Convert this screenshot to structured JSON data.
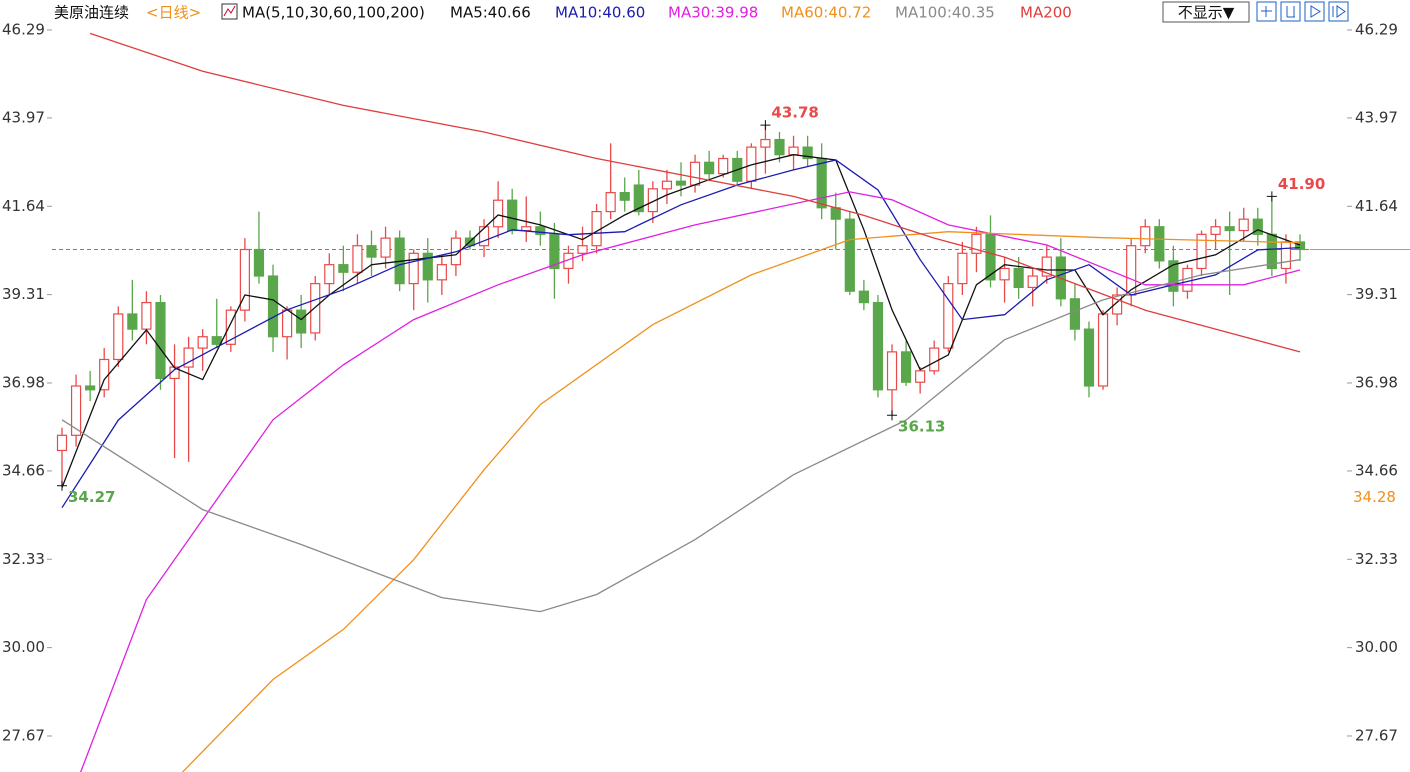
{
  "chart_data": {
    "type": "candlestick",
    "title": "美原油连续",
    "period": "<日线>",
    "indicator": "MA(5,10,30,60,100,200)",
    "display_button": "不显示▼",
    "up_color": "#e84a4a",
    "down_color": "#5aa64a",
    "ylim": [
      26.72,
      46.5
    ],
    "yticks": [
      46.29,
      43.97,
      41.64,
      39.31,
      36.98,
      34.66,
      32.33,
      {
        "value": 30,
        "label": "30.00"
      },
      27.67
    ],
    "last_price_line": {
      "value": 40.5,
      "color": "#3a8fd8"
    },
    "right_marker": {
      "value": 34.28,
      "color": "#f0901c"
    },
    "candles": [
      [
        35.2,
        35.8,
        34.27,
        35.6
      ],
      [
        35.6,
        37.2,
        35.3,
        36.9
      ],
      [
        36.9,
        37.3,
        36.5,
        36.8
      ],
      [
        36.8,
        37.9,
        36.6,
        37.6
      ],
      [
        37.6,
        39.0,
        37.4,
        38.8
      ],
      [
        38.8,
        39.7,
        38.1,
        38.4
      ],
      [
        38.4,
        39.4,
        38.0,
        39.1
      ],
      [
        39.1,
        39.3,
        36.8,
        37.1
      ],
      [
        37.1,
        38.0,
        35.0,
        37.4
      ],
      [
        37.4,
        38.2,
        34.9,
        37.9
      ],
      [
        37.9,
        38.4,
        37.3,
        38.2
      ],
      [
        38.2,
        39.2,
        37.9,
        38.0
      ],
      [
        38.0,
        39.0,
        37.8,
        38.9
      ],
      [
        38.9,
        40.8,
        38.6,
        40.5
      ],
      [
        40.5,
        41.5,
        39.6,
        39.8
      ],
      [
        39.8,
        40.1,
        37.8,
        38.2
      ],
      [
        38.2,
        39.0,
        37.6,
        38.9
      ],
      [
        38.9,
        39.3,
        37.9,
        38.3
      ],
      [
        38.3,
        39.8,
        38.1,
        39.6
      ],
      [
        39.6,
        40.4,
        39.3,
        40.1
      ],
      [
        40.1,
        40.6,
        39.4,
        39.9
      ],
      [
        39.9,
        40.9,
        39.6,
        40.6
      ],
      [
        40.6,
        41.0,
        39.8,
        40.3
      ],
      [
        40.3,
        41.1,
        40.0,
        40.8
      ],
      [
        40.8,
        41.0,
        39.4,
        39.6
      ],
      [
        39.6,
        40.5,
        38.9,
        40.4
      ],
      [
        40.4,
        40.8,
        39.1,
        39.7
      ],
      [
        39.7,
        40.3,
        39.3,
        40.1
      ],
      [
        40.1,
        41.0,
        39.8,
        40.8
      ],
      [
        40.8,
        41.0,
        40.5,
        40.6
      ],
      [
        40.6,
        41.3,
        40.3,
        41.1
      ],
      [
        41.1,
        42.3,
        40.8,
        41.8
      ],
      [
        41.8,
        42.1,
        40.9,
        41.0
      ],
      [
        41.0,
        41.9,
        40.7,
        41.1
      ],
      [
        41.1,
        41.5,
        40.6,
        40.9
      ],
      [
        40.9,
        41.2,
        39.2,
        40.0
      ],
      [
        40.0,
        40.6,
        39.6,
        40.4
      ],
      [
        40.4,
        41.1,
        40.2,
        40.6
      ],
      [
        40.6,
        41.7,
        40.4,
        41.5
      ],
      [
        41.5,
        43.3,
        41.3,
        42.0
      ],
      [
        42.0,
        42.4,
        41.5,
        41.8
      ],
      [
        42.2,
        42.6,
        41.4,
        41.5
      ],
      [
        41.5,
        42.3,
        41.2,
        42.1
      ],
      [
        42.1,
        42.6,
        41.7,
        42.3
      ],
      [
        42.3,
        42.8,
        41.9,
        42.2
      ],
      [
        42.2,
        43.0,
        42.0,
        42.8
      ],
      [
        42.8,
        43.1,
        42.3,
        42.5
      ],
      [
        42.5,
        43.0,
        42.4,
        42.9
      ],
      [
        42.9,
        43.1,
        42.2,
        42.3
      ],
      [
        42.3,
        43.3,
        42.1,
        43.2
      ],
      [
        43.2,
        43.78,
        42.5,
        43.4
      ],
      [
        43.4,
        43.6,
        42.8,
        43.0
      ],
      [
        43.0,
        43.5,
        42.6,
        43.2
      ],
      [
        43.2,
        43.5,
        42.7,
        42.9
      ],
      [
        42.9,
        43.3,
        41.3,
        41.6
      ],
      [
        41.6,
        42.0,
        40.5,
        41.3
      ],
      [
        41.3,
        41.5,
        39.3,
        39.4
      ],
      [
        39.4,
        39.7,
        38.9,
        39.1
      ],
      [
        39.1,
        39.3,
        36.6,
        36.8
      ],
      [
        36.8,
        38.0,
        36.13,
        37.8
      ],
      [
        37.8,
        38.1,
        36.9,
        37.0
      ],
      [
        37.0,
        37.4,
        36.7,
        37.3
      ],
      [
        37.3,
        38.1,
        37.2,
        37.9
      ],
      [
        37.9,
        39.8,
        37.8,
        39.6
      ],
      [
        39.6,
        40.7,
        39.3,
        40.4
      ],
      [
        40.4,
        41.1,
        39.9,
        40.9
      ],
      [
        40.9,
        41.4,
        39.5,
        39.7
      ],
      [
        39.7,
        40.3,
        39.1,
        40.0
      ],
      [
        40.0,
        40.3,
        39.2,
        39.5
      ],
      [
        39.5,
        40.0,
        39.0,
        39.8
      ],
      [
        39.8,
        40.6,
        39.6,
        40.3
      ],
      [
        40.3,
        40.8,
        39.0,
        39.2
      ],
      [
        39.2,
        39.6,
        38.1,
        38.4
      ],
      [
        38.4,
        38.6,
        36.6,
        36.9
      ],
      [
        36.9,
        38.9,
        36.8,
        38.8
      ],
      [
        38.8,
        39.5,
        38.5,
        39.3
      ],
      [
        39.3,
        40.8,
        39.0,
        40.6
      ],
      [
        40.6,
        41.3,
        40.4,
        41.1
      ],
      [
        41.1,
        41.3,
        40.0,
        40.2
      ],
      [
        40.2,
        40.6,
        39.0,
        39.4
      ],
      [
        39.4,
        40.1,
        39.2,
        40.0
      ],
      [
        40.0,
        41.0,
        39.8,
        40.9
      ],
      [
        40.9,
        41.3,
        40.5,
        41.1
      ],
      [
        41.1,
        41.5,
        39.3,
        41.0
      ],
      [
        41.0,
        41.6,
        40.7,
        41.3
      ],
      [
        41.3,
        41.6,
        40.6,
        40.9
      ],
      [
        40.9,
        41.9,
        39.8,
        40.0
      ],
      [
        40.0,
        40.9,
        39.6,
        40.7
      ],
      [
        40.7,
        40.9,
        40.2,
        40.5
      ]
    ],
    "annotations": [
      {
        "candle": 50,
        "value": 43.78,
        "label": "43.78",
        "color": "#e84a4a"
      },
      {
        "candle": 0,
        "value": 34.27,
        "label": "34.27",
        "color": "#5aa64a"
      },
      {
        "candle": 59,
        "value": 36.13,
        "label": "36.13",
        "color": "#5aa64a"
      },
      {
        "candle": 86,
        "value": 41.9,
        "label": "41.90",
        "color": "#e84a4a"
      }
    ],
    "series": [
      {
        "name": "MA5:40.66",
        "color": "#111111",
        "x": [
          0,
          3,
          6,
          8,
          10,
          13,
          15,
          17,
          19,
          22,
          25,
          28,
          31,
          34,
          37,
          40,
          43,
          46,
          49,
          52,
          55,
          57,
          59,
          61,
          63,
          65,
          67,
          70,
          72,
          74,
          76,
          79,
          82,
          85,
          88
        ],
        "values": [
          34.22,
          37.07,
          38.38,
          37.38,
          37.07,
          39.3,
          39.17,
          38.65,
          39.3,
          40.1,
          40.23,
          40.36,
          41.41,
          41.15,
          40.76,
          41.41,
          41.94,
          42.34,
          42.73,
          43.0,
          42.86,
          41.02,
          38.91,
          37.33,
          37.72,
          39.57,
          40.1,
          39.96,
          39.96,
          38.78,
          39.44,
          40.1,
          40.36,
          41.02,
          40.62
        ]
      },
      {
        "name": "MA10:40.60",
        "color": "#1b1bb0",
        "x": [
          0,
          4,
          8,
          12,
          16,
          20,
          24,
          28,
          32,
          36,
          40,
          44,
          48,
          52,
          55,
          58,
          61,
          64,
          67,
          70,
          73,
          76,
          79,
          82,
          85,
          88
        ],
        "values": [
          33.69,
          36.0,
          37.33,
          38.12,
          38.91,
          39.44,
          40.1,
          40.44,
          41.02,
          40.89,
          40.97,
          41.68,
          42.2,
          42.6,
          42.86,
          42.07,
          40.23,
          38.65,
          38.78,
          39.7,
          40.1,
          39.3,
          39.57,
          39.83,
          40.49,
          40.55
        ]
      },
      {
        "name": "MA30:39.98",
        "color": "#e020e0",
        "x": [
          1,
          6,
          10,
          15,
          20,
          25,
          31,
          37,
          45,
          56,
          59,
          63,
          70,
          77,
          84,
          88
        ],
        "values": [
          26.4,
          31.27,
          33.38,
          36.01,
          37.46,
          38.65,
          39.57,
          40.36,
          41.15,
          42.02,
          41.81,
          41.15,
          40.62,
          39.57,
          39.57,
          39.96
        ]
      },
      {
        "name": "MA60:40.72",
        "color": "#f0901c",
        "x": [
          8,
          15,
          20,
          25,
          30,
          34,
          42,
          49,
          56,
          63,
          74,
          88
        ],
        "values": [
          26.5,
          29.16,
          30.48,
          32.32,
          34.69,
          36.41,
          38.52,
          39.83,
          40.76,
          40.97,
          40.81,
          40.68
        ]
      },
      {
        "name": "MA100:40.35",
        "color": "#8a8a8a",
        "x": [
          0,
          10,
          17,
          27,
          34,
          38,
          45,
          52,
          60,
          67,
          74,
          81,
          88
        ],
        "values": [
          36.01,
          33.64,
          32.72,
          31.32,
          30.95,
          31.4,
          32.85,
          34.56,
          36.0,
          38.12,
          39.17,
          39.83,
          40.23
        ]
      },
      {
        "name": "MA200",
        "color": "#e03c3c",
        "x": [
          2,
          10,
          20,
          30,
          38,
          45,
          52,
          57,
          62,
          67,
          72,
          77,
          82,
          88
        ],
        "values": [
          46.2,
          45.2,
          44.3,
          43.6,
          42.9,
          42.4,
          41.9,
          41.4,
          40.8,
          40.3,
          39.6,
          38.9,
          38.4,
          37.8
        ]
      }
    ]
  }
}
